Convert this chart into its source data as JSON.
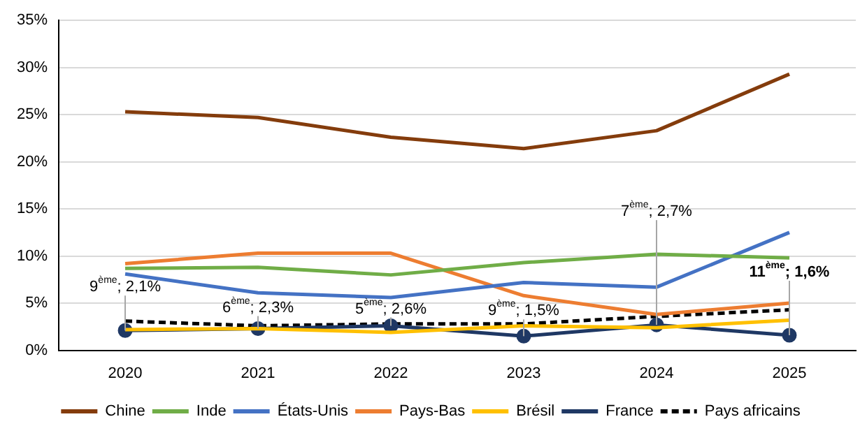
{
  "chart_data": {
    "type": "line",
    "categories": [
      "2020",
      "2021",
      "2022",
      "2023",
      "2024",
      "2025"
    ],
    "series": [
      {
        "name": "Chine",
        "color": "#843c0c",
        "values": [
          25.3,
          24.7,
          22.6,
          21.4,
          23.3,
          29.3
        ]
      },
      {
        "name": "Inde",
        "color": "#70ad47",
        "values": [
          8.7,
          8.8,
          8.0,
          9.3,
          10.2,
          9.8
        ]
      },
      {
        "name": "États-Unis",
        "color": "#4472c4",
        "values": [
          8.1,
          6.1,
          5.6,
          7.2,
          6.7,
          12.5
        ]
      },
      {
        "name": "Pays-Bas",
        "color": "#ed7d31",
        "values": [
          9.2,
          10.3,
          10.3,
          5.8,
          3.8,
          5.0
        ]
      },
      {
        "name": "Brésil",
        "color": "#ffc000",
        "values": [
          2.2,
          2.3,
          1.9,
          2.6,
          2.4,
          3.2
        ]
      },
      {
        "name": "France",
        "color": "#1f3864",
        "values": [
          2.1,
          2.3,
          2.6,
          1.5,
          2.7,
          1.6
        ],
        "marker": "circle"
      },
      {
        "name": "Pays africains",
        "color": "#000000",
        "values": [
          3.1,
          2.6,
          2.8,
          2.8,
          3.6,
          4.3
        ],
        "line_style": "dashed"
      }
    ],
    "ylim": [
      0,
      35
    ],
    "yticks": [
      {
        "value": 0,
        "label": "0%"
      },
      {
        "value": 5,
        "label": "5%"
      },
      {
        "value": 10,
        "label": "10%"
      },
      {
        "value": 15,
        "label": "15%"
      },
      {
        "value": 20,
        "label": "20%"
      },
      {
        "value": 25,
        "label": "25%"
      },
      {
        "value": 30,
        "label": "30%"
      },
      {
        "value": 35,
        "label": "35%"
      }
    ],
    "grid": "y",
    "legend": "bottom",
    "marker": "none",
    "line_style": "solid",
    "annotations": [
      {
        "text": "9$^{ème}$; 2,1%",
        "x": "2020",
        "y": 2.1
      },
      {
        "text": "6$^{ème}$; 2,3%",
        "x": "2021",
        "y": 2.3
      },
      {
        "text": "5$^{ème}$; 2,6%",
        "x": "2022",
        "y": 2.6
      },
      {
        "text": "9$^{ème}$; 1,5%",
        "x": "2023",
        "y": 1.5
      },
      {
        "text": "7$^{ème}$; 2,7%",
        "x": "2024",
        "y": 2.7
      },
      {
        "text": "11$^{ème}$; 1,6%",
        "x": "2025",
        "y": 1.6
      }
    ]
  }
}
